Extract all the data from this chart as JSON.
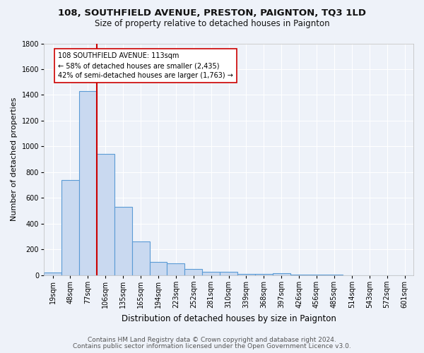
{
  "title1": "108, SOUTHFIELD AVENUE, PRESTON, PAIGNTON, TQ3 1LD",
  "title2": "Size of property relative to detached houses in Paignton",
  "xlabel": "Distribution of detached houses by size in Paignton",
  "ylabel": "Number of detached properties",
  "categories": [
    "19sqm",
    "48sqm",
    "77sqm",
    "106sqm",
    "135sqm",
    "165sqm",
    "194sqm",
    "223sqm",
    "252sqm",
    "281sqm",
    "310sqm",
    "339sqm",
    "368sqm",
    "397sqm",
    "426sqm",
    "456sqm",
    "485sqm",
    "514sqm",
    "543sqm",
    "572sqm",
    "601sqm"
  ],
  "values": [
    20,
    740,
    1430,
    940,
    530,
    260,
    105,
    90,
    50,
    25,
    25,
    10,
    10,
    15,
    5,
    5,
    2,
    0,
    0,
    0,
    0
  ],
  "bar_color": "#c9d9f0",
  "bar_edge_color": "#5b9bd5",
  "vline_x_index": 3,
  "vline_color": "#cc0000",
  "annotation_text": "108 SOUTHFIELD AVENUE: 113sqm\n← 58% of detached houses are smaller (2,435)\n42% of semi-detached houses are larger (1,763) →",
  "annotation_box_color": "#ffffff",
  "annotation_box_edge_color": "#cc0000",
  "ylim": [
    0,
    1800
  ],
  "yticks": [
    0,
    200,
    400,
    600,
    800,
    1000,
    1200,
    1400,
    1600,
    1800
  ],
  "footer1": "Contains HM Land Registry data © Crown copyright and database right 2024.",
  "footer2": "Contains public sector information licensed under the Open Government Licence v3.0.",
  "bg_color": "#eef2f9",
  "grid_color": "#ffffff",
  "title1_fontsize": 9.5,
  "title2_fontsize": 8.5,
  "xlabel_fontsize": 8.5,
  "ylabel_fontsize": 8,
  "tick_fontsize": 7,
  "footer_fontsize": 6.5,
  "annotation_fontsize": 7.0
}
